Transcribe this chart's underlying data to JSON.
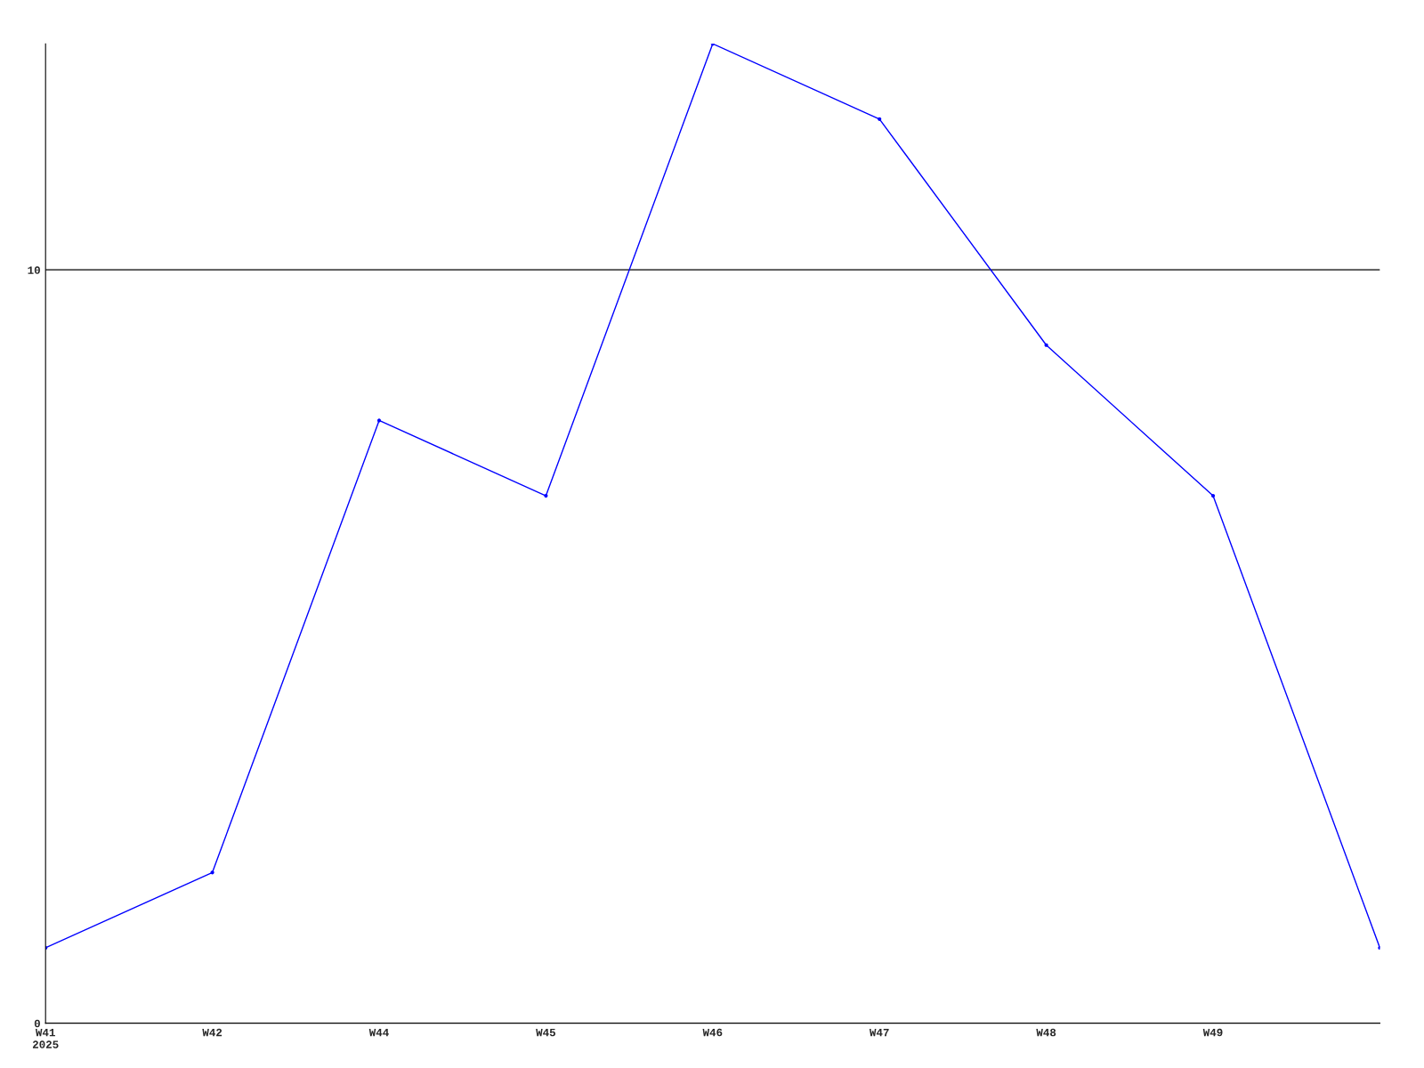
{
  "chart_data": {
    "type": "line",
    "categories": [
      "W41\n2025",
      "W42",
      "W44",
      "W45",
      "W46",
      "W47",
      "W48",
      "W49",
      null
    ],
    "series": [
      {
        "color": "#0000ff",
        "values": [
          1,
          2,
          8,
          7,
          13,
          12,
          9,
          7,
          1
        ]
      }
    ],
    "ylim": [
      0,
      13
    ],
    "yticks": [
      0,
      10
    ],
    "grid": "y",
    "marker": "circle",
    "line_style": "solid"
  }
}
